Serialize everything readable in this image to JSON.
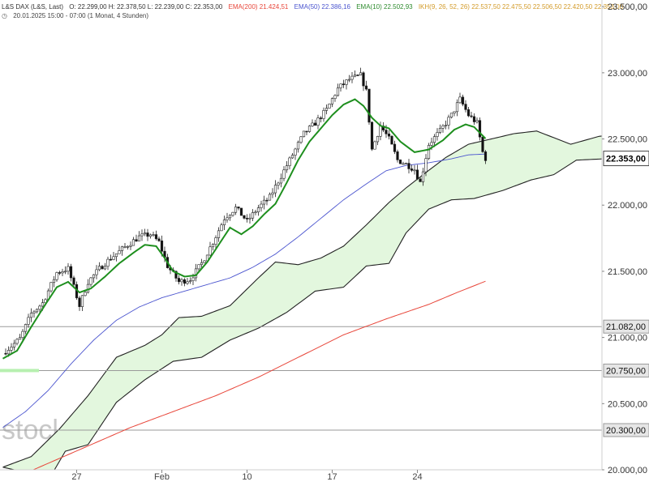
{
  "header": {
    "symbol": "L&S DAX (L&S, Last)",
    "ohlc": "O: 22.299,00  H: 22.378,50  L: 22.239,00  C: 22.353,00",
    "indicators": [
      {
        "text": "EMA(200)  21.424,51",
        "color": "#e8463a"
      },
      {
        "text": "EMA(50)  22.386,16",
        "color": "#4b55cf"
      },
      {
        "text": "EMA(10)  22.502,93",
        "color": "#2e8b2e"
      },
      {
        "text": "IKH(9, 26, 52, 26)  22.537,50  22.475,50  22.506,50  22.420,50  22.353,00",
        "color": "#e8b64a"
      }
    ],
    "period": "20.01.2025 15:00 - 07:00  (1 Monat, 4 Stunden)"
  },
  "watermark": "stock3",
  "colors": {
    "candle_up": "#ffffff",
    "candle_down": "#111111",
    "wick": "#222222",
    "ema10": "#1e8f1e",
    "ema50": "#4b55cf",
    "ema200": "#e8463a",
    "cloud_fill": "#e3f7de",
    "cloud_line": "#222222",
    "hline": "#9a9a9a"
  },
  "chart_data": {
    "type": "candlestick",
    "title": "L&S DAX (L&S, Last)",
    "timeframe": "4 Stunden",
    "ylim": [
      20000,
      23550
    ],
    "x_ticks": [
      {
        "i": 26,
        "label": "27"
      },
      {
        "i": 56,
        "label": "Feb"
      },
      {
        "i": 86,
        "label": "10"
      },
      {
        "i": 116,
        "label": "17"
      },
      {
        "i": 146,
        "label": "24"
      }
    ],
    "y_ticks": [
      20000,
      20500,
      21000,
      21500,
      22000,
      22500,
      23000,
      23500
    ],
    "y_tick_labels": [
      "20.000,00",
      "20.500,00",
      "21.000,00",
      "21.500,00",
      "22.000,00",
      "22.500,00",
      "23.000,00",
      "23.500,00"
    ],
    "last_price": {
      "value": 22353,
      "label": "22.353,00"
    },
    "levels": [
      {
        "value": 21082,
        "label": "21.082,00"
      },
      {
        "value": 20750,
        "label": "20.750,00"
      },
      {
        "value": 20300,
        "label": "20.300,00"
      }
    ],
    "price_path": [
      [
        0,
        20880
      ],
      [
        6,
        20990
      ],
      [
        10,
        21180
      ],
      [
        14,
        21260
      ],
      [
        19,
        21490
      ],
      [
        23,
        21520
      ],
      [
        27,
        21240
      ],
      [
        30,
        21420
      ],
      [
        34,
        21520
      ],
      [
        38,
        21600
      ],
      [
        44,
        21700
      ],
      [
        48,
        21760
      ],
      [
        52,
        21780
      ],
      [
        55,
        21720
      ],
      [
        58,
        21540
      ],
      [
        62,
        21420
      ],
      [
        66,
        21440
      ],
      [
        70,
        21560
      ],
      [
        74,
        21720
      ],
      [
        78,
        21900
      ],
      [
        82,
        21980
      ],
      [
        86,
        21880
      ],
      [
        90,
        21980
      ],
      [
        94,
        22060
      ],
      [
        98,
        22220
      ],
      [
        102,
        22380
      ],
      [
        106,
        22540
      ],
      [
        110,
        22620
      ],
      [
        114,
        22720
      ],
      [
        118,
        22880
      ],
      [
        122,
        22950
      ],
      [
        126,
        22980
      ],
      [
        128,
        22860
      ],
      [
        130,
        22420
      ],
      [
        133,
        22600
      ],
      [
        136,
        22500
      ],
      [
        139,
        22340
      ],
      [
        142,
        22310
      ],
      [
        145,
        22270
      ],
      [
        147,
        22170
      ],
      [
        150,
        22460
      ],
      [
        154,
        22560
      ],
      [
        158,
        22680
      ],
      [
        161,
        22800
      ],
      [
        164,
        22680
      ],
      [
        167,
        22620
      ],
      [
        169,
        22400
      ],
      [
        170,
        22353
      ]
    ],
    "ema10": [
      [
        0,
        20840
      ],
      [
        5,
        20900
      ],
      [
        10,
        21080
      ],
      [
        15,
        21250
      ],
      [
        19,
        21380
      ],
      [
        23,
        21420
      ],
      [
        27,
        21340
      ],
      [
        31,
        21370
      ],
      [
        36,
        21460
      ],
      [
        41,
        21560
      ],
      [
        46,
        21640
      ],
      [
        50,
        21700
      ],
      [
        54,
        21690
      ],
      [
        57,
        21600
      ],
      [
        60,
        21500
      ],
      [
        64,
        21460
      ],
      [
        68,
        21470
      ],
      [
        72,
        21570
      ],
      [
        76,
        21700
      ],
      [
        80,
        21830
      ],
      [
        84,
        21780
      ],
      [
        88,
        21840
      ],
      [
        92,
        21930
      ],
      [
        96,
        22010
      ],
      [
        100,
        22170
      ],
      [
        104,
        22340
      ],
      [
        108,
        22480
      ],
      [
        112,
        22580
      ],
      [
        116,
        22680
      ],
      [
        120,
        22760
      ],
      [
        124,
        22800
      ],
      [
        127,
        22750
      ],
      [
        130,
        22660
      ],
      [
        133,
        22600
      ],
      [
        136,
        22580
      ],
      [
        140,
        22480
      ],
      [
        145,
        22400
      ],
      [
        150,
        22420
      ],
      [
        155,
        22490
      ],
      [
        159,
        22570
      ],
      [
        163,
        22610
      ],
      [
        166,
        22590
      ],
      [
        170,
        22503
      ]
    ],
    "ema50": [
      [
        0,
        20320
      ],
      [
        8,
        20440
      ],
      [
        16,
        20600
      ],
      [
        24,
        20800
      ],
      [
        32,
        20980
      ],
      [
        40,
        21130
      ],
      [
        48,
        21230
      ],
      [
        56,
        21300
      ],
      [
        64,
        21350
      ],
      [
        72,
        21400
      ],
      [
        80,
        21450
      ],
      [
        88,
        21530
      ],
      [
        96,
        21630
      ],
      [
        104,
        21760
      ],
      [
        112,
        21900
      ],
      [
        120,
        22040
      ],
      [
        128,
        22160
      ],
      [
        135,
        22260
      ],
      [
        142,
        22300
      ],
      [
        150,
        22320
      ],
      [
        158,
        22350
      ],
      [
        164,
        22380
      ],
      [
        170,
        22386
      ]
    ],
    "ema200": [
      [
        0,
        19900
      ],
      [
        15,
        20040
      ],
      [
        30,
        20180
      ],
      [
        45,
        20320
      ],
      [
        60,
        20440
      ],
      [
        75,
        20560
      ],
      [
        90,
        20700
      ],
      [
        105,
        20860
      ],
      [
        120,
        21020
      ],
      [
        135,
        21140
      ],
      [
        150,
        21250
      ],
      [
        160,
        21340
      ],
      [
        170,
        21425
      ]
    ],
    "cloud_span_a": [
      [
        0,
        20020
      ],
      [
        10,
        20100
      ],
      [
        20,
        20310
      ],
      [
        30,
        20560
      ],
      [
        40,
        20850
      ],
      [
        50,
        20940
      ],
      [
        56,
        21020
      ],
      [
        62,
        21150
      ],
      [
        70,
        21160
      ],
      [
        80,
        21240
      ],
      [
        90,
        21450
      ],
      [
        96,
        21570
      ],
      [
        104,
        21550
      ],
      [
        112,
        21600
      ],
      [
        120,
        21690
      ],
      [
        128,
        21850
      ],
      [
        136,
        22020
      ],
      [
        142,
        22130
      ],
      [
        148,
        22230
      ],
      [
        156,
        22360
      ],
      [
        164,
        22460
      ],
      [
        172,
        22500
      ],
      [
        180,
        22540
      ],
      [
        188,
        22560
      ],
      [
        200,
        22460
      ],
      [
        210,
        22520
      ],
      [
        220,
        22540
      ],
      [
        226,
        22520
      ]
    ],
    "cloud_span_b": [
      [
        0,
        20020
      ],
      [
        8,
        19980
      ],
      [
        16,
        19920
      ],
      [
        22,
        20140
      ],
      [
        30,
        20190
      ],
      [
        40,
        20510
      ],
      [
        50,
        20680
      ],
      [
        60,
        20820
      ],
      [
        70,
        20850
      ],
      [
        80,
        20980
      ],
      [
        90,
        21070
      ],
      [
        100,
        21190
      ],
      [
        110,
        21350
      ],
      [
        120,
        21380
      ],
      [
        128,
        21540
      ],
      [
        136,
        21560
      ],
      [
        142,
        21790
      ],
      [
        150,
        21970
      ],
      [
        158,
        22040
      ],
      [
        166,
        22050
      ],
      [
        176,
        22110
      ],
      [
        186,
        22190
      ],
      [
        194,
        22230
      ],
      [
        202,
        22340
      ],
      [
        212,
        22350
      ],
      [
        226,
        22400
      ]
    ]
  }
}
